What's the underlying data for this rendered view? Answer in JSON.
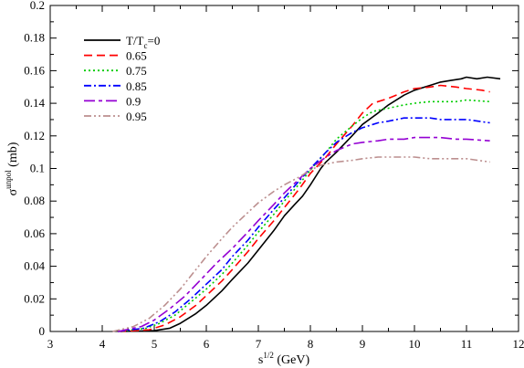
{
  "chart_data": {
    "type": "line",
    "xlabel": {
      "base": "s",
      "sup": "1/2",
      "rest": " (GeV)"
    },
    "ylabel": {
      "base": "σ",
      "sup": "unpol",
      "rest": " (mb)"
    },
    "xlim": [
      3,
      12
    ],
    "ylim": [
      0,
      0.2
    ],
    "x_ticks": [
      "3",
      "4",
      "5",
      "6",
      "7",
      "8",
      "9",
      "10",
      "11",
      "12"
    ],
    "y_ticks": [
      "0",
      "0.02",
      "0.04",
      "0.06",
      "0.08",
      "0.1",
      "0.12",
      "0.14",
      "0.16",
      "0.18",
      "0.2"
    ],
    "legend_position": "top-left",
    "grid": false,
    "series": [
      {
        "name": "0",
        "legend_prefix": "T/T",
        "legend_sub": "c",
        "legend_suffix": "=0",
        "color": "#000000",
        "dash": "solid",
        "points": [
          [
            4.35,
            0
          ],
          [
            5.0,
            0.0005
          ],
          [
            5.3,
            0.002
          ],
          [
            5.5,
            0.005
          ],
          [
            5.8,
            0.011
          ],
          [
            6.0,
            0.016
          ],
          [
            6.3,
            0.025
          ],
          [
            6.5,
            0.032
          ],
          [
            6.8,
            0.042
          ],
          [
            7.0,
            0.05
          ],
          [
            7.3,
            0.062
          ],
          [
            7.5,
            0.071
          ],
          [
            7.7,
            0.078
          ],
          [
            7.85,
            0.083
          ],
          [
            8.0,
            0.09
          ],
          [
            8.2,
            0.1
          ],
          [
            8.3,
            0.104
          ],
          [
            8.5,
            0.11
          ],
          [
            8.8,
            0.12
          ],
          [
            9.0,
            0.127
          ],
          [
            9.3,
            0.134
          ],
          [
            9.5,
            0.139
          ],
          [
            9.8,
            0.145
          ],
          [
            10.0,
            0.148
          ],
          [
            10.3,
            0.151
          ],
          [
            10.5,
            0.153
          ],
          [
            10.7,
            0.154
          ],
          [
            10.9,
            0.155
          ],
          [
            11.0,
            0.156
          ],
          [
            11.2,
            0.155
          ],
          [
            11.4,
            0.156
          ],
          [
            11.65,
            0.155
          ]
        ]
      },
      {
        "name": "0.65",
        "color": "#ff0000",
        "dash": "9,5",
        "points": [
          [
            4.3,
            0
          ],
          [
            4.9,
            0.001
          ],
          [
            5.2,
            0.004
          ],
          [
            5.5,
            0.009
          ],
          [
            5.8,
            0.016
          ],
          [
            6.0,
            0.022
          ],
          [
            6.3,
            0.031
          ],
          [
            6.5,
            0.038
          ],
          [
            6.8,
            0.049
          ],
          [
            7.0,
            0.057
          ],
          [
            7.3,
            0.068
          ],
          [
            7.5,
            0.076
          ],
          [
            7.8,
            0.088
          ],
          [
            8.0,
            0.097
          ],
          [
            8.3,
            0.107
          ],
          [
            8.5,
            0.115
          ],
          [
            8.8,
            0.126
          ],
          [
            9.0,
            0.134
          ],
          [
            9.2,
            0.14
          ],
          [
            9.5,
            0.143
          ],
          [
            9.8,
            0.147
          ],
          [
            10.0,
            0.149
          ],
          [
            10.3,
            0.15
          ],
          [
            10.5,
            0.151
          ],
          [
            10.8,
            0.15
          ],
          [
            11.0,
            0.149
          ],
          [
            11.3,
            0.148
          ],
          [
            11.45,
            0.147
          ]
        ]
      },
      {
        "name": "0.75",
        "color": "#00cc00",
        "dash": "2,3",
        "points": [
          [
            4.3,
            0
          ],
          [
            4.85,
            0.002
          ],
          [
            5.1,
            0.005
          ],
          [
            5.4,
            0.01
          ],
          [
            5.7,
            0.018
          ],
          [
            6.0,
            0.026
          ],
          [
            6.3,
            0.035
          ],
          [
            6.5,
            0.042
          ],
          [
            6.8,
            0.053
          ],
          [
            7.0,
            0.061
          ],
          [
            7.3,
            0.072
          ],
          [
            7.5,
            0.08
          ],
          [
            7.8,
            0.091
          ],
          [
            8.0,
            0.099
          ],
          [
            8.3,
            0.11
          ],
          [
            8.5,
            0.118
          ],
          [
            8.8,
            0.126
          ],
          [
            9.0,
            0.131
          ],
          [
            9.2,
            0.135
          ],
          [
            9.5,
            0.137
          ],
          [
            9.8,
            0.139
          ],
          [
            10.0,
            0.14
          ],
          [
            10.3,
            0.141
          ],
          [
            10.5,
            0.141
          ],
          [
            10.8,
            0.141
          ],
          [
            11.0,
            0.142
          ],
          [
            11.45,
            0.141
          ]
        ]
      },
      {
        "name": "0.85",
        "color": "#0000ff",
        "dash": "8,3,2,3",
        "points": [
          [
            4.3,
            0
          ],
          [
            4.8,
            0.002
          ],
          [
            5.1,
            0.006
          ],
          [
            5.4,
            0.012
          ],
          [
            5.7,
            0.02
          ],
          [
            6.0,
            0.029
          ],
          [
            6.3,
            0.038
          ],
          [
            6.5,
            0.046
          ],
          [
            6.8,
            0.056
          ],
          [
            7.0,
            0.064
          ],
          [
            7.3,
            0.075
          ],
          [
            7.5,
            0.082
          ],
          [
            7.8,
            0.093
          ],
          [
            8.0,
            0.1
          ],
          [
            8.3,
            0.11
          ],
          [
            8.5,
            0.116
          ],
          [
            8.8,
            0.122
          ],
          [
            9.0,
            0.125
          ],
          [
            9.3,
            0.128
          ],
          [
            9.5,
            0.129
          ],
          [
            9.8,
            0.131
          ],
          [
            10.0,
            0.131
          ],
          [
            10.3,
            0.131
          ],
          [
            10.5,
            0.13
          ],
          [
            10.8,
            0.13
          ],
          [
            11.0,
            0.13
          ],
          [
            11.45,
            0.128
          ]
        ]
      },
      {
        "name": "0.9",
        "color": "#9400d3",
        "dash": "12,4,4,4",
        "points": [
          [
            4.3,
            0
          ],
          [
            4.75,
            0.003
          ],
          [
            5.0,
            0.007
          ],
          [
            5.3,
            0.014
          ],
          [
            5.6,
            0.022
          ],
          [
            5.9,
            0.032
          ],
          [
            6.2,
            0.042
          ],
          [
            6.5,
            0.051
          ],
          [
            6.8,
            0.061
          ],
          [
            7.0,
            0.068
          ],
          [
            7.3,
            0.078
          ],
          [
            7.5,
            0.085
          ],
          [
            7.8,
            0.094
          ],
          [
            8.0,
            0.1
          ],
          [
            8.3,
            0.107
          ],
          [
            8.5,
            0.111
          ],
          [
            8.8,
            0.115
          ],
          [
            9.0,
            0.116
          ],
          [
            9.3,
            0.117
          ],
          [
            9.5,
            0.118
          ],
          [
            9.8,
            0.118
          ],
          [
            10.0,
            0.119
          ],
          [
            10.3,
            0.119
          ],
          [
            10.5,
            0.119
          ],
          [
            10.8,
            0.118
          ],
          [
            11.0,
            0.118
          ],
          [
            11.45,
            0.117
          ]
        ]
      },
      {
        "name": "0.95",
        "color": "#bc8f8f",
        "dash": "8,3,2,3,2,3",
        "points": [
          [
            4.2,
            0
          ],
          [
            4.6,
            0.003
          ],
          [
            4.9,
            0.008
          ],
          [
            5.2,
            0.016
          ],
          [
            5.5,
            0.026
          ],
          [
            5.8,
            0.038
          ],
          [
            6.0,
            0.046
          ],
          [
            6.3,
            0.057
          ],
          [
            6.5,
            0.064
          ],
          [
            6.8,
            0.073
          ],
          [
            7.0,
            0.079
          ],
          [
            7.3,
            0.086
          ],
          [
            7.5,
            0.09
          ],
          [
            7.8,
            0.095
          ],
          [
            8.0,
            0.099
          ],
          [
            8.2,
            0.102
          ],
          [
            8.5,
            0.104
          ],
          [
            8.8,
            0.105
          ],
          [
            9.0,
            0.106
          ],
          [
            9.3,
            0.107
          ],
          [
            9.5,
            0.107
          ],
          [
            9.8,
            0.107
          ],
          [
            10.0,
            0.107
          ],
          [
            10.3,
            0.106
          ],
          [
            10.5,
            0.106
          ],
          [
            10.8,
            0.106
          ],
          [
            11.0,
            0.106
          ],
          [
            11.45,
            0.104
          ]
        ]
      }
    ]
  }
}
